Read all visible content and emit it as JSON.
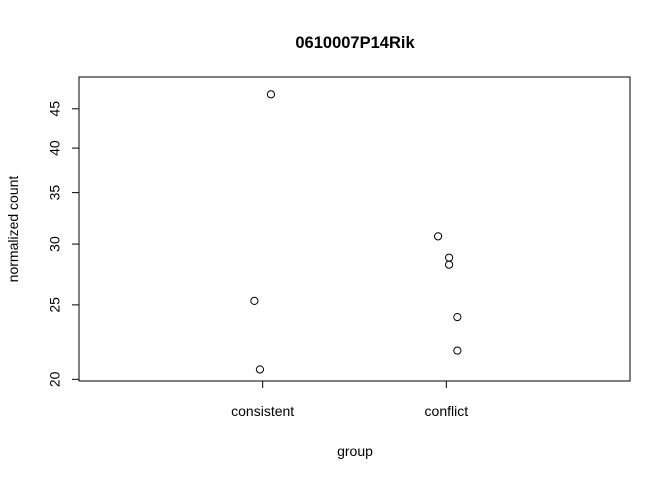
{
  "chart_data": {
    "type": "scatter",
    "title": "0610007P14Rik",
    "xlabel": "group",
    "ylabel": "normalized count",
    "y_scale": "log",
    "ylim": [
      19.9,
      49.5
    ],
    "y_ticks": [
      20,
      25,
      30,
      35,
      40,
      45
    ],
    "y_tick_labels": [
      "20",
      "25",
      "30",
      "35",
      "40",
      "45"
    ],
    "categories": [
      "consistent",
      "conflict"
    ],
    "grid": false,
    "legend": "none",
    "points": [
      {
        "group": "consistent",
        "jitter": 0.03,
        "y": 47.0
      },
      {
        "group": "consistent",
        "jitter": -0.03,
        "y": 25.3
      },
      {
        "group": "consistent",
        "jitter": -0.01,
        "y": 20.6
      },
      {
        "group": "conflict",
        "jitter": -0.03,
        "y": 30.7
      },
      {
        "group": "conflict",
        "jitter": 0.01,
        "y": 28.8
      },
      {
        "group": "conflict",
        "jitter": 0.01,
        "y": 28.2
      },
      {
        "group": "conflict",
        "jitter": 0.04,
        "y": 24.1
      },
      {
        "group": "conflict",
        "jitter": 0.04,
        "y": 21.8
      }
    ]
  }
}
